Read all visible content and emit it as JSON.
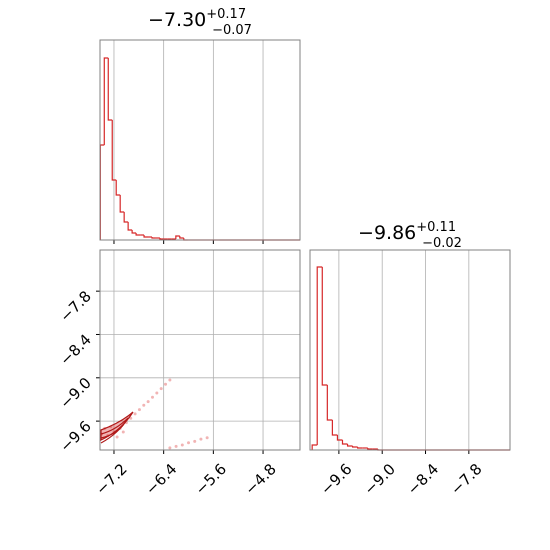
{
  "chart_data": {
    "type": "corner",
    "color": "#d62728",
    "grid": true,
    "hist_ylim": [
      0,
      200
    ],
    "params": [
      {
        "title": {
          "main": "−7.30",
          "sup": "+0.17",
          "sub": "−0.07"
        },
        "lim": [
          -7.425,
          -4.205
        ],
        "ticks": [
          {
            "value": -7.2,
            "label": "−7.2"
          },
          {
            "value": -6.4,
            "label": "−6.4"
          },
          {
            "value": -5.6,
            "label": "−5.6"
          },
          {
            "value": -4.8,
            "label": "−4.8"
          }
        ],
        "hist": {
          "bins": [
            -7.42,
            -7.356,
            -7.292,
            -7.228,
            -7.164,
            -7.1,
            -7.036,
            -6.972,
            -6.908,
            -6.844,
            -6.78,
            -6.716,
            -6.652,
            -6.588,
            -6.524,
            -6.46,
            -6.396,
            -6.332,
            -6.268,
            -6.204,
            -6.14,
            -6.076,
            -6.012,
            -5.948,
            -5.884,
            -5.82,
            -5.756,
            -5.692,
            -5.628,
            -5.564,
            -5.5
          ],
          "counts": [
            95,
            182,
            120,
            60,
            45,
            28,
            18,
            10,
            7,
            5,
            5,
            3,
            3,
            2,
            2,
            1,
            1,
            1,
            1,
            4,
            2,
            0,
            0,
            0,
            0,
            0,
            0,
            0,
            0,
            0
          ]
        }
      },
      {
        "title": {
          "main": "−9.86",
          "sup": "+0.11",
          "sub": "−0.02"
        },
        "lim": [
          -10.0,
          -7.23
        ],
        "ticks": [
          {
            "value": -9.6,
            "label": "−9.6"
          },
          {
            "value": -9.0,
            "label": "−9.0"
          },
          {
            "value": -8.4,
            "label": "−8.4"
          },
          {
            "value": -7.8,
            "label": "−7.8"
          }
        ],
        "hist": {
          "bins": [
            -9.97,
            -9.9,
            -9.83,
            -9.76,
            -9.69,
            -9.62,
            -9.55,
            -9.48,
            -9.41,
            -9.34,
            -9.27,
            -9.2,
            -9.13,
            -9.06
          ],
          "counts": [
            5,
            183,
            65,
            30,
            15,
            10,
            6,
            4,
            3,
            2,
            2,
            1,
            1
          ]
        }
      }
    ],
    "scatter": {
      "x": [
        -7.4,
        -7.3,
        -7.2,
        -7.1,
        -7.0,
        -6.93,
        -6.86,
        -6.79,
        -6.72,
        -6.65,
        -6.58,
        -6.51,
        -6.44,
        -6.37,
        -6.3,
        -7.35,
        -7.25,
        -7.15,
        -7.05,
        -6.3,
        -6.2,
        -6.1,
        -6.0,
        -5.9,
        -5.8,
        -5.7
      ],
      "y": [
        -9.78,
        -9.8,
        -9.75,
        -9.7,
        -9.62,
        -9.56,
        -9.5,
        -9.44,
        -9.38,
        -9.33,
        -9.27,
        -9.21,
        -9.15,
        -9.09,
        -9.03,
        -9.7,
        -9.68,
        -9.82,
        -9.75,
        -9.97,
        -9.95,
        -9.93,
        -9.9,
        -9.88,
        -9.85,
        -9.83
      ]
    }
  }
}
